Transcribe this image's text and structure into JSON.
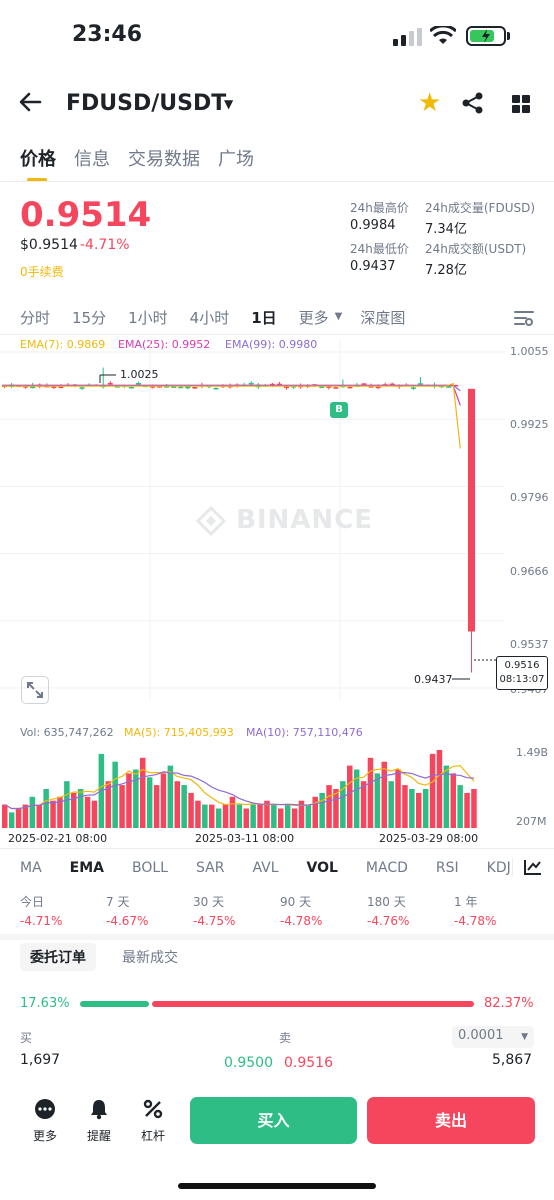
{
  "status_bar": {
    "time": "23:46"
  },
  "header": {
    "pair": "FDUSD/USDT"
  },
  "tabs": [
    "价格",
    "信息",
    "交易数据",
    "广场"
  ],
  "ticker": {
    "price": "0.9514",
    "usd_price": "$0.9514",
    "change": "-4.71%",
    "fee_note": "0手续费",
    "high_label": "24h最高价",
    "high": "0.9984",
    "low_label": "24h最低价",
    "low": "0.9437",
    "vol_base_label": "24h成交量(FDUSD)",
    "vol_base": "7.34亿",
    "vol_quote_label": "24h成交额(USDT)",
    "vol_quote": "7.28亿"
  },
  "intervals": [
    "分时",
    "15分",
    "1小时",
    "4小时",
    "1日",
    "更多",
    "深度图"
  ],
  "ema_legend": {
    "ema7": "EMA(7): 0.9869",
    "ema25": "EMA(25): 0.9952",
    "ema99": "EMA(99): 0.9980"
  },
  "price_axis": [
    "1.0055",
    "0.9925",
    "0.9796",
    "0.9666",
    "0.9537",
    "0.9407"
  ],
  "annotations": {
    "high_mark": "1.0025",
    "low_mark": "0.9437",
    "buy_marker": "B"
  },
  "current_price_tag": {
    "price": "0.9516",
    "countdown": "08:13:07"
  },
  "watermark": "BINANCE",
  "volume_legend": {
    "vol": "Vol: 635,747,262",
    "ma5": "MA(5): 715,405,993",
    "ma10": "MA(10): 757,110,476"
  },
  "volume_axis": [
    "1.49B",
    "207M"
  ],
  "date_axis": [
    "2025-02-21 08:00",
    "2025-03-11 08:00",
    "2025-03-29 08:00"
  ],
  "indicators": [
    "MA",
    "EMA",
    "BOLL",
    "SAR",
    "AVL",
    "VOL",
    "MACD",
    "RSI",
    "KDJ"
  ],
  "performance": [
    {
      "label": "今日",
      "value": "-4.71%"
    },
    {
      "label": "7 天",
      "value": "-4.67%"
    },
    {
      "label": "30 天",
      "value": "-4.75%"
    },
    {
      "label": "90 天",
      "value": "-4.78%"
    },
    {
      "label": "180 天",
      "value": "-4.76%"
    },
    {
      "label": "1 年",
      "value": "-4.78%"
    }
  ],
  "orderbook": {
    "tab_orders": "委托订单",
    "tab_trades": "最新成交",
    "buy_ratio": "17.63%",
    "sell_ratio": "82.37%",
    "buy_label": "买",
    "sell_label": "卖",
    "precision": "0.0001",
    "rows": [
      {
        "bid_qty": "1,697",
        "bid_price": "0.9500",
        "ask_price": "0.9516",
        "ask_qty": "5,867"
      }
    ]
  },
  "bottom_nav": {
    "more": "更多",
    "alert": "提醒",
    "margin": "杠杆",
    "buy": "买入",
    "sell": "卖出"
  },
  "colors": {
    "up": "#2ebd85",
    "down": "#f6465d",
    "accent": "#f0b90b",
    "ema7": "#f0b90b",
    "ema25": "#d63ab8",
    "ema99": "#8e6bd6"
  },
  "chart_data": {
    "type": "candlestick",
    "interval": "1日",
    "price_range": [
      0.9407,
      1.0055
    ],
    "volume_range_label": [
      "207M",
      "1.49B"
    ],
    "last_candle": {
      "open": 0.9984,
      "high": 0.9984,
      "low": 0.9437,
      "close": 0.9516
    },
    "typical_range": [
      0.9975,
      1.0005
    ],
    "volume_bars": 66
  }
}
